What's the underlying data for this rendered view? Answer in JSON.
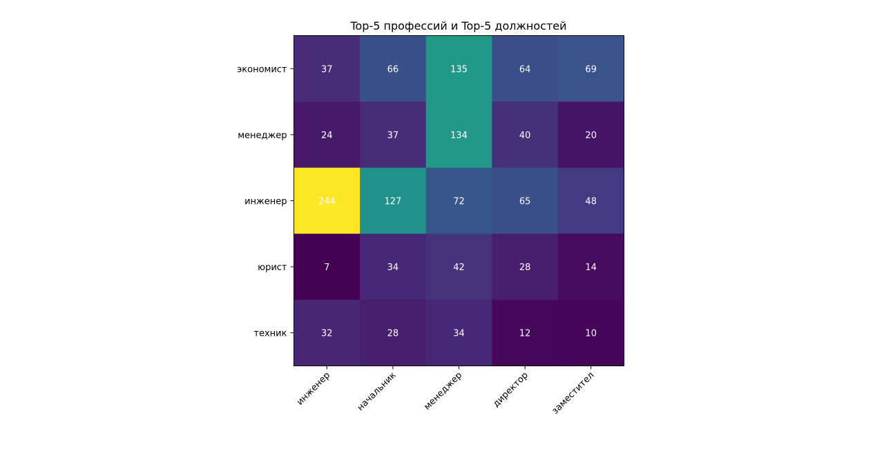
{
  "chart_data": {
    "type": "heatmap",
    "title": "Top-5 профессий и Top-5 должностей",
    "xlabel": "",
    "ylabel": "",
    "x_categories": [
      "инженер",
      "начальник",
      "менеджер",
      "директор",
      "заместител"
    ],
    "y_categories": [
      "экономист",
      "менеджер",
      "инженер",
      "юрист",
      "техник"
    ],
    "values": [
      [
        37,
        66,
        135,
        64,
        69
      ],
      [
        24,
        37,
        134,
        40,
        20
      ],
      [
        244,
        127,
        72,
        65,
        48
      ],
      [
        7,
        34,
        42,
        28,
        14
      ],
      [
        32,
        28,
        34,
        12,
        10
      ]
    ],
    "colormap": "viridis",
    "value_range": [
      7,
      244
    ],
    "annotation_color": "#ffffff",
    "x_tick_rotation_deg": 45,
    "grid": false,
    "legend": "none"
  }
}
